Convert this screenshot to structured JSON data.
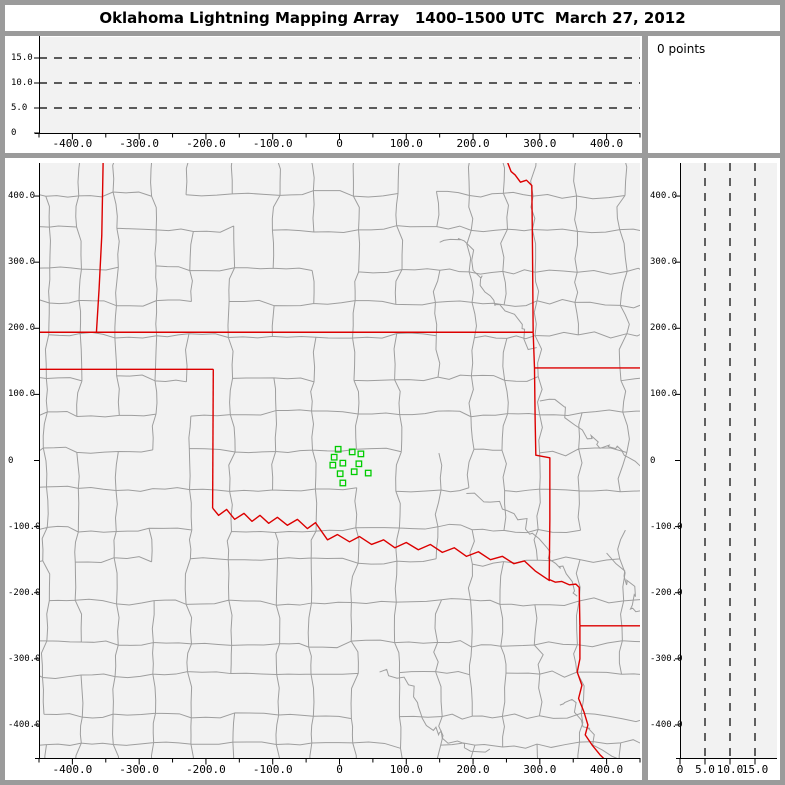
{
  "window": {
    "title": "Oklahoma Lightning Mapping Array   1400–1500 UTC  March 27, 2012"
  },
  "points_panel": {
    "label": "0 points"
  },
  "colors": {
    "frame": "#9b9b9b",
    "panel": "#ffffff",
    "plot_bg": "#f2f2f2",
    "axis": "#000000",
    "county_line": "#9e9e9e",
    "state_line": "#dc0000",
    "station": "#00cc00"
  },
  "axes": {
    "horizontal_km": {
      "range": [
        -450,
        450
      ],
      "minor_step": 50,
      "major": [
        -400,
        -300,
        -200,
        -100,
        0,
        100,
        200,
        300,
        400
      ],
      "labels": [
        "-400.0",
        "-300.0",
        "-200.0",
        "-100.0",
        "0",
        "100.0",
        "200.0",
        "300.0",
        "400.0"
      ]
    },
    "vertical_km": {
      "range": [
        -450,
        450
      ],
      "major": [
        400,
        300,
        200,
        100,
        0,
        -100,
        -200,
        -300,
        -400
      ],
      "labels": [
        "400.0",
        "300.0",
        "200.0",
        "100.0",
        "0",
        "-100.0",
        "-200.0",
        "-300.0",
        "-400.0"
      ]
    },
    "altitude_km": {
      "range": [
        0,
        19
      ],
      "gridlines": [
        5,
        10,
        15
      ],
      "ew_tick_values": [
        15,
        10,
        5,
        0
      ],
      "ew_tick_labels": [
        "15.0",
        "10.0",
        "5.0",
        "0"
      ],
      "ns_tick_values": [
        0,
        5,
        10,
        15
      ],
      "ns_tick_labels": [
        "0",
        "5.0",
        "10.0",
        "15.0"
      ]
    }
  },
  "map": {
    "stations_km": [
      [
        -2,
        17
      ],
      [
        19,
        13
      ],
      [
        32,
        10
      ],
      [
        -8,
        5
      ],
      [
        5,
        -4
      ],
      [
        29,
        -5
      ],
      [
        -10,
        -7
      ],
      [
        22,
        -17
      ],
      [
        43,
        -19
      ],
      [
        1,
        -20
      ],
      [
        5,
        -34
      ]
    ],
    "state_borders": [
      {
        "name": "colorado-kansas",
        "points": [
          [
            -354,
            450
          ],
          [
            -356,
            340
          ],
          [
            -360,
            260
          ],
          [
            -364,
            194
          ]
        ]
      },
      {
        "name": "kansas-south",
        "points": [
          [
            -455,
            194
          ],
          [
            290,
            194
          ]
        ]
      },
      {
        "name": "kansas-missouri",
        "points": [
          [
            290,
            194
          ],
          [
            289,
            320
          ],
          [
            288,
            416
          ],
          [
            280,
            424
          ],
          [
            271,
            421
          ],
          [
            263,
            432
          ],
          [
            257,
            437
          ],
          [
            252,
            450
          ]
        ]
      },
      {
        "name": "missouri-arkansas",
        "points": [
          [
            292,
            140
          ],
          [
            450,
            140
          ]
        ]
      },
      {
        "name": "oklahoma-east",
        "points": [
          [
            290,
            194
          ],
          [
            292,
            140
          ],
          [
            293,
            60
          ],
          [
            294,
            8
          ],
          [
            315,
            4
          ],
          [
            315,
            -90
          ],
          [
            314,
            -180
          ],
          [
            323,
            -184
          ],
          [
            333,
            -183
          ],
          [
            344,
            -188
          ],
          [
            354,
            -187
          ],
          [
            359,
            -192
          ],
          [
            360,
            -250
          ]
        ]
      },
      {
        "name": "arkansas-louisiana",
        "points": [
          [
            360,
            -250
          ],
          [
            450,
            -250
          ]
        ]
      },
      {
        "name": "texas-louisiana",
        "points": [
          [
            360,
            -250
          ],
          [
            360,
            -300
          ],
          [
            356,
            -320
          ],
          [
            363,
            -340
          ],
          [
            358,
            -360
          ],
          [
            366,
            -380
          ],
          [
            372,
            -400
          ],
          [
            368,
            -415
          ],
          [
            378,
            -430
          ],
          [
            390,
            -445
          ],
          [
            397,
            -452
          ]
        ]
      },
      {
        "name": "texas-panhandle-north",
        "points": [
          [
            -455,
            138
          ],
          [
            -189,
            138
          ]
        ]
      },
      {
        "name": "oklahoma-west",
        "points": [
          [
            -189,
            138
          ],
          [
            -190,
            -72
          ]
        ]
      },
      {
        "name": "red-river",
        "points": [
          [
            -190,
            -72
          ],
          [
            -181,
            -83
          ],
          [
            -169,
            -74
          ],
          [
            -157,
            -89
          ],
          [
            -143,
            -80
          ],
          [
            -131,
            -92
          ],
          [
            -119,
            -83
          ],
          [
            -106,
            -95
          ],
          [
            -93,
            -86
          ],
          [
            -78,
            -98
          ],
          [
            -63,
            -89
          ],
          [
            -48,
            -103
          ],
          [
            -36,
            -94
          ],
          [
            -18,
            -120
          ],
          [
            -3,
            -112
          ],
          [
            15,
            -123
          ],
          [
            30,
            -115
          ],
          [
            48,
            -127
          ],
          [
            66,
            -120
          ],
          [
            83,
            -132
          ],
          [
            100,
            -124
          ],
          [
            118,
            -135
          ],
          [
            136,
            -127
          ],
          [
            154,
            -139
          ],
          [
            172,
            -132
          ],
          [
            190,
            -145
          ],
          [
            208,
            -138
          ],
          [
            226,
            -150
          ],
          [
            244,
            -145
          ],
          [
            261,
            -156
          ],
          [
            277,
            -152
          ],
          [
            293,
            -167
          ],
          [
            306,
            -176
          ],
          [
            315,
            -182
          ]
        ]
      }
    ]
  },
  "chart_data": [
    {
      "type": "scatter",
      "panel": "altitude_vs_east_west",
      "xlim": [
        -450,
        450
      ],
      "ylim": [
        0,
        19
      ],
      "x_ticks": [
        -400,
        -300,
        -200,
        -100,
        0,
        100,
        200,
        300,
        400
      ],
      "y_gridlines": [
        5,
        10,
        15
      ],
      "n_points": 0,
      "points": []
    },
    {
      "type": "scatter",
      "panel": "plan_view_map",
      "xlim": [
        -450,
        450
      ],
      "ylim": [
        -450,
        450
      ],
      "x_ticks": [
        -400,
        -300,
        -200,
        -100,
        0,
        100,
        200,
        300,
        400
      ],
      "y_ticks": [
        400,
        300,
        200,
        100,
        0,
        -100,
        -200,
        -300,
        -400
      ],
      "n_points": 0,
      "points": []
    },
    {
      "type": "scatter",
      "panel": "altitude_vs_north_south",
      "xlim": [
        0,
        19
      ],
      "ylim": [
        -450,
        450
      ],
      "x_ticks": [
        0,
        5,
        10,
        15
      ],
      "x_gridlines": [
        5,
        10,
        15
      ],
      "n_points": 0,
      "points": []
    }
  ]
}
